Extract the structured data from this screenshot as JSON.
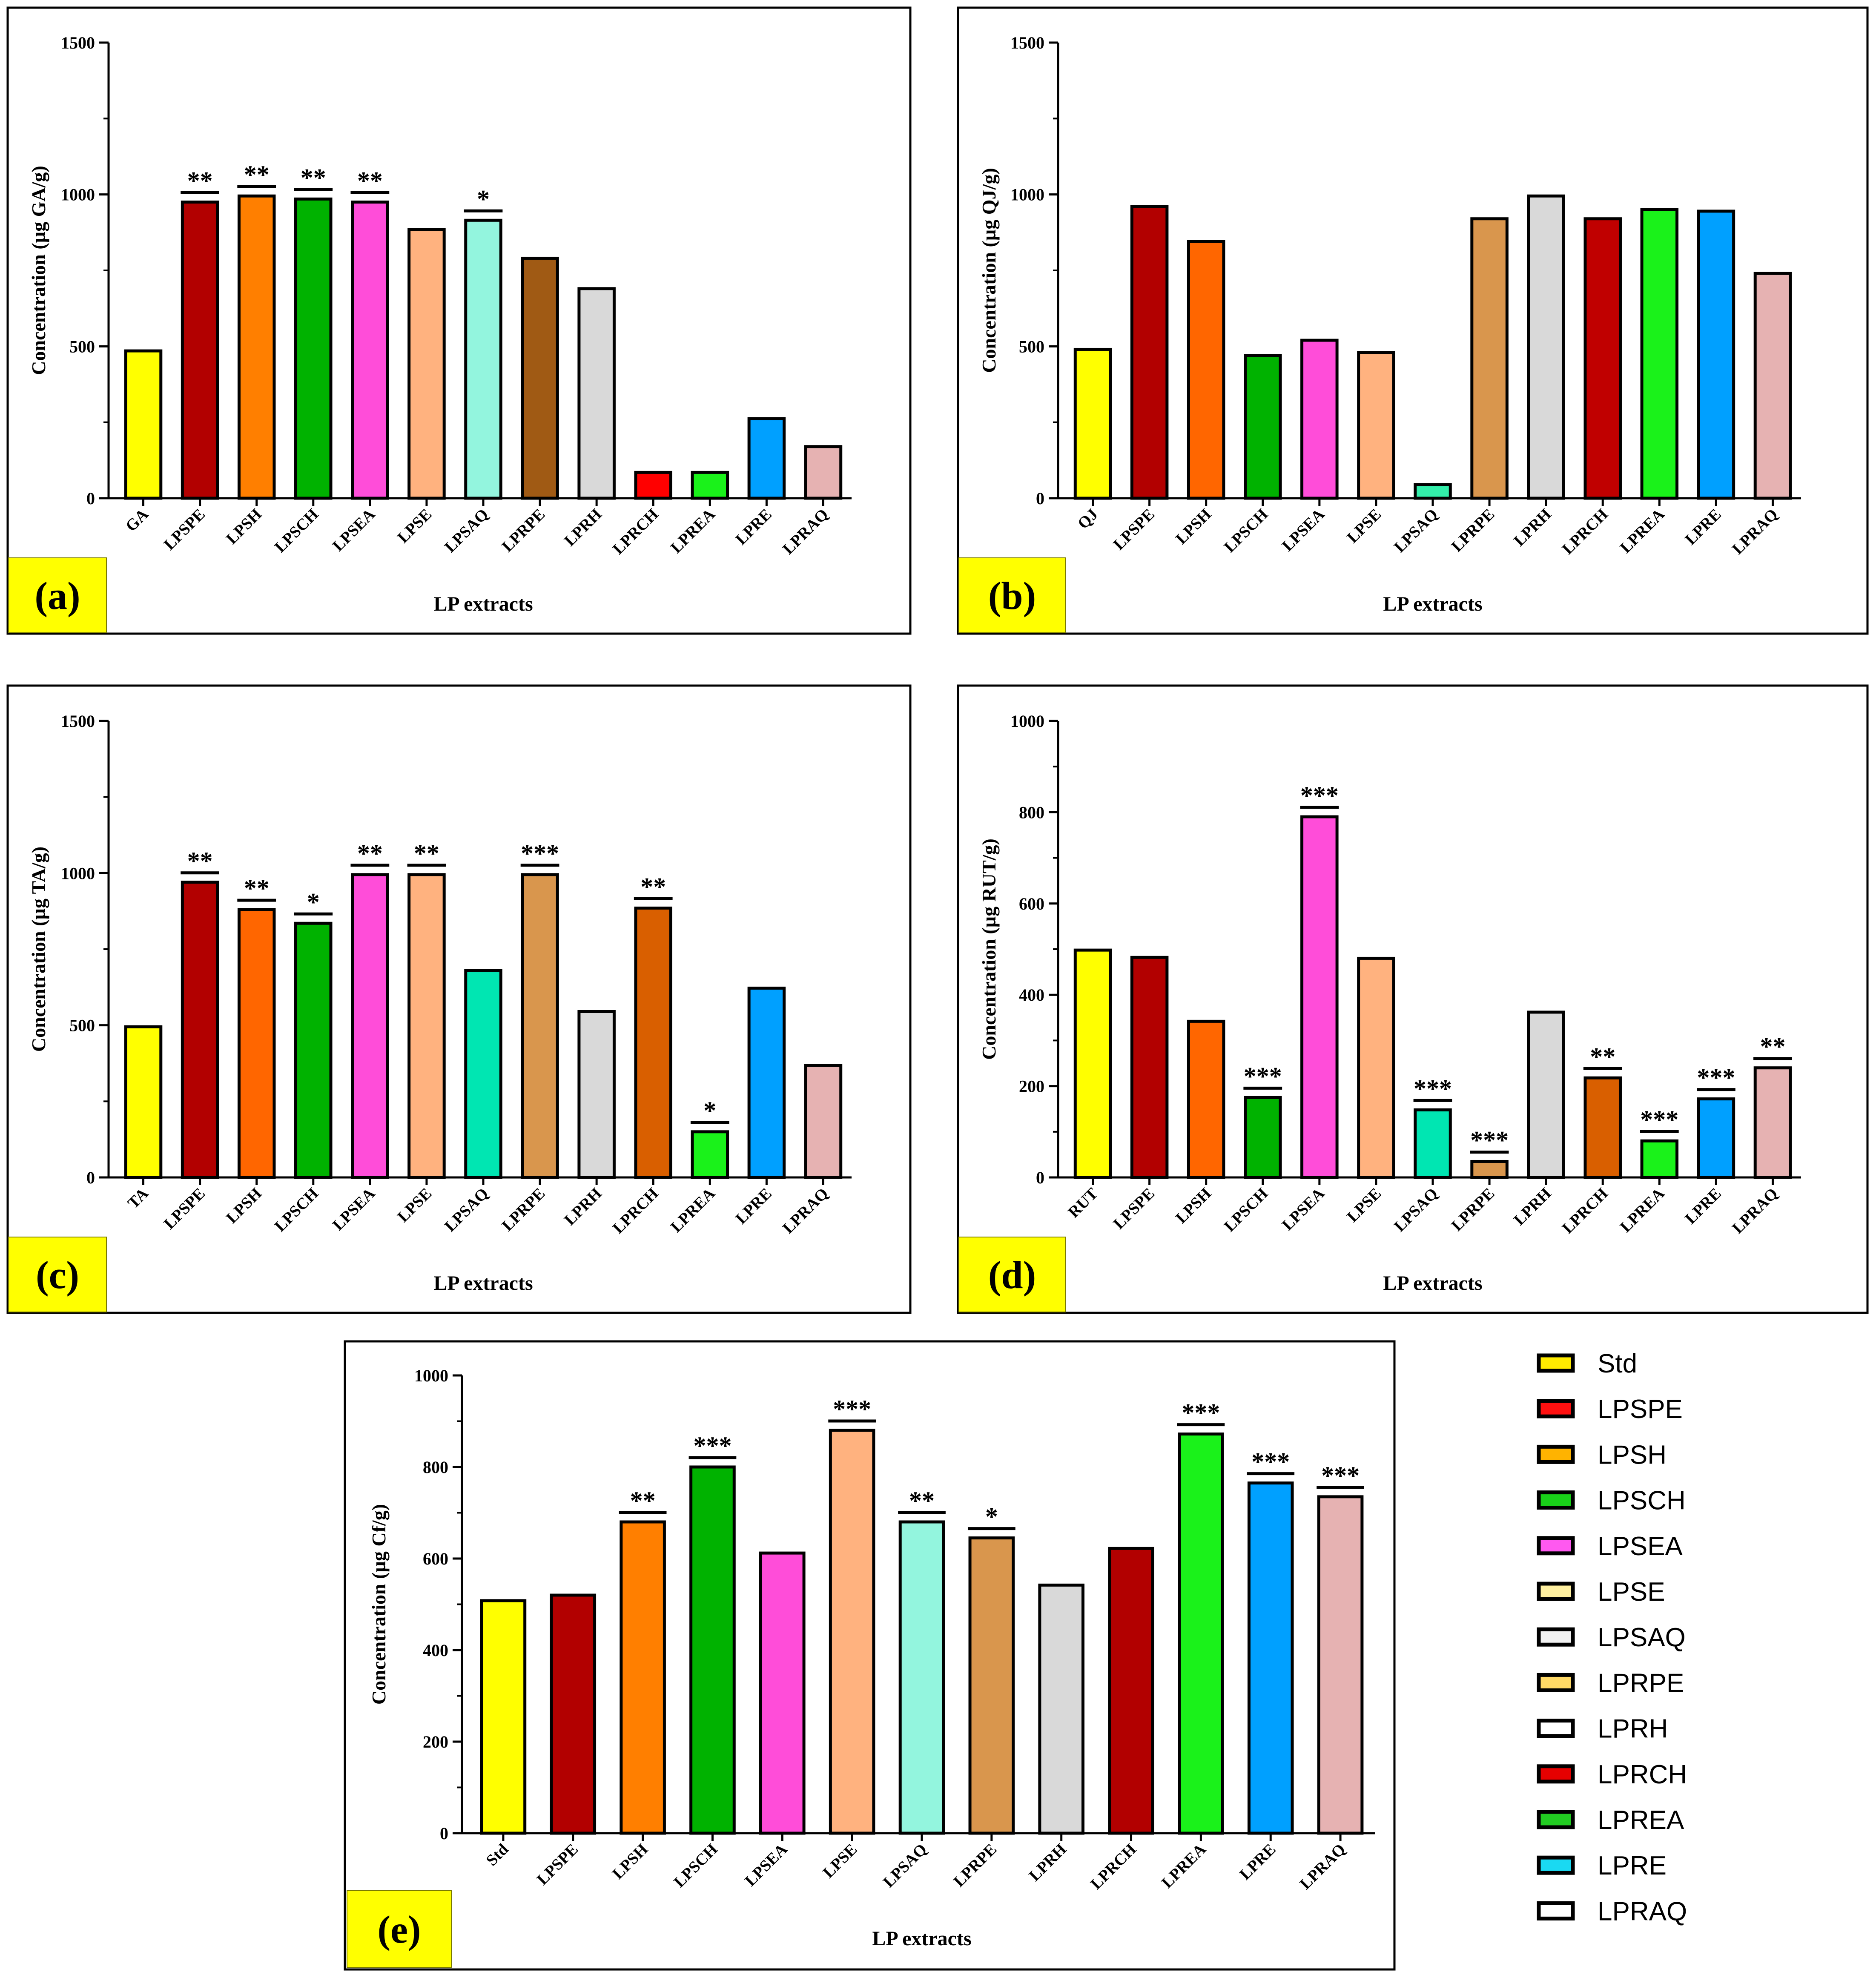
{
  "chart_data": [
    {
      "panel": "(a)",
      "type": "bar",
      "title": "",
      "xlabel": "LP extracts",
      "ylabel": "Concentration (µg GA/g)",
      "ylim": [
        0,
        1500
      ],
      "yticks": [
        0,
        500,
        1000,
        1500
      ],
      "grid": false,
      "categories": [
        "GA",
        "LPSPE",
        "LPSH",
        "LPSCH",
        "LPSEA",
        "LPSE",
        "LPSAQ",
        "LPRPE",
        "LPRH",
        "LPRCH",
        "LPREA",
        "LPRE",
        "LPRAQ"
      ],
      "values": [
        485,
        975,
        995,
        985,
        975,
        885,
        915,
        790,
        690,
        85,
        85,
        262,
        170
      ],
      "significance": [
        "",
        "**",
        "**",
        "**",
        "**",
        "",
        "*",
        "",
        "",
        "",
        "",
        "",
        ""
      ],
      "colors": [
        "#FFFF00",
        "#B20000",
        "#FF7F00",
        "#00B200",
        "#FF4DD9",
        "#FFB27F",
        "#93F5DE",
        "#A05A14",
        "#D9D9D9",
        "#FF0000",
        "#1AF21A",
        "#00A0FF",
        "#E6B2B2"
      ]
    },
    {
      "panel": "(b)",
      "type": "bar",
      "title": "",
      "xlabel": "LP extracts",
      "ylabel": "Concentration (µg QJ/g)",
      "ylim": [
        0,
        1500
      ],
      "yticks": [
        0,
        500,
        1000,
        1500
      ],
      "grid": false,
      "categories": [
        "QJ",
        "LPSPE",
        "LPSH",
        "LPSCH",
        "LPSEA",
        "LPSE",
        "LPSAQ",
        "LPRPE",
        "LPRH",
        "LPRCH",
        "LPREA",
        "LPRE",
        "LPRAQ"
      ],
      "values": [
        490,
        960,
        845,
        470,
        520,
        480,
        45,
        920,
        995,
        920,
        950,
        945,
        740
      ],
      "significance": [
        "",
        "",
        "",
        "",
        "",
        "",
        "",
        "",
        "",
        "",
        "",
        "",
        ""
      ],
      "colors": [
        "#FFFF00",
        "#B20000",
        "#FF6600",
        "#00B200",
        "#FF4DD9",
        "#FFB27F",
        "#33EEAA",
        "#D9964D",
        "#D9D9D9",
        "#C00000",
        "#1AF21A",
        "#00A0FF",
        "#E6B2B2"
      ]
    },
    {
      "panel": "(c)",
      "type": "bar",
      "title": "",
      "xlabel": "LP extracts",
      "ylabel": "Concentration (µg TA/g)",
      "ylim": [
        0,
        1500
      ],
      "yticks": [
        0,
        500,
        1000,
        1500
      ],
      "grid": false,
      "categories": [
        "TA",
        "LPSPE",
        "LPSH",
        "LPSCH",
        "LPSEA",
        "LPSE",
        "LPSAQ",
        "LPRPE",
        "LPRH",
        "LPRCH",
        "LPREA",
        "LPRE",
        "LPRAQ"
      ],
      "values": [
        495,
        970,
        880,
        835,
        995,
        995,
        680,
        995,
        545,
        885,
        150,
        622,
        368
      ],
      "significance": [
        "",
        "**",
        "**",
        "*",
        "**",
        "**",
        "",
        "***",
        "",
        "**",
        "*",
        "",
        ""
      ],
      "colors": [
        "#FFFF00",
        "#B20000",
        "#FF6600",
        "#00B200",
        "#FF4DD9",
        "#FFB27F",
        "#00E6B2",
        "#D9964D",
        "#D9D9D9",
        "#D95F00",
        "#1AF21A",
        "#00A0FF",
        "#E6B2B2"
      ]
    },
    {
      "panel": "(d)",
      "type": "bar",
      "title": "",
      "xlabel": "LP extracts",
      "ylabel": "Concentration (µg RUT/g)",
      "ylim": [
        0,
        1000
      ],
      "yticks": [
        0,
        200,
        400,
        600,
        800,
        1000
      ],
      "grid": false,
      "categories": [
        "RUT",
        "LPSPE",
        "LPSH",
        "LPSCH",
        "LPSEA",
        "LPSE",
        "LPSAQ",
        "LPRPE",
        "LPRH",
        "LPRCH",
        "LPREA",
        "LPRE",
        "LPRAQ"
      ],
      "values": [
        498,
        482,
        342,
        175,
        790,
        480,
        148,
        35,
        362,
        218,
        80,
        172,
        240
      ],
      "significance": [
        "",
        "",
        "",
        "***",
        "***",
        "",
        "***",
        "***",
        "",
        "**",
        "***",
        "***",
        "**"
      ],
      "colors": [
        "#FFFF00",
        "#B20000",
        "#FF6600",
        "#00B200",
        "#FF4DD9",
        "#FFB27F",
        "#00E6B2",
        "#D9964D",
        "#D9D9D9",
        "#D95F00",
        "#1AF21A",
        "#00A0FF",
        "#E6B2B2"
      ]
    },
    {
      "panel": "(e)",
      "type": "bar",
      "title": "",
      "xlabel": "LP extracts",
      "ylabel": "Concentration (µg Cf/g)",
      "ylim": [
        0,
        1000
      ],
      "yticks": [
        0,
        200,
        400,
        600,
        800,
        1000
      ],
      "grid": false,
      "categories": [
        "Std",
        "LPSPE",
        "LPSH",
        "LPSCH",
        "LPSEA",
        "LPSE",
        "LPSAQ",
        "LPRPE",
        "LPRH",
        "LPRCH",
        "LPREA",
        "LPRE",
        "LPRAQ"
      ],
      "values": [
        508,
        520,
        680,
        800,
        612,
        880,
        680,
        645,
        542,
        622,
        872,
        765,
        735
      ],
      "significance": [
        "",
        "",
        "**",
        "***",
        "",
        "***",
        "**",
        "*",
        "",
        "",
        "***",
        "***",
        "***"
      ],
      "colors": [
        "#FFFF00",
        "#B20000",
        "#FF7F00",
        "#00B200",
        "#FF4DD9",
        "#FFB27F",
        "#93F5DE",
        "#D9964D",
        "#D9D9D9",
        "#B20000",
        "#1AF21A",
        "#00A0FF",
        "#E6B2B2"
      ]
    }
  ],
  "legend": {
    "items": [
      {
        "label": "Std",
        "color": "#FFEB00"
      },
      {
        "label": "LPSPE",
        "color": "#FF1010"
      },
      {
        "label": "LPSH",
        "color": "#FFB300"
      },
      {
        "label": "LPSCH",
        "color": "#19D119"
      },
      {
        "label": "LPSEA",
        "color": "#FF59F0"
      },
      {
        "label": "LPSE",
        "color": "#FFF0A0"
      },
      {
        "label": "LPSAQ",
        "color": "#F2F2F2"
      },
      {
        "label": "LPRPE",
        "color": "#FFD966"
      },
      {
        "label": "LPRH",
        "color": "#FFFFFF"
      },
      {
        "label": "LPRCH",
        "color": "#E60000"
      },
      {
        "label": "LPREA",
        "color": "#22CC22"
      },
      {
        "label": "LPRE",
        "color": "#1AD9F2"
      },
      {
        "label": "LPRAQ",
        "color": "#FFFFFF"
      }
    ]
  },
  "theme": {
    "panel_label_bg": "#FFFF00",
    "frame_color": "#000000"
  }
}
